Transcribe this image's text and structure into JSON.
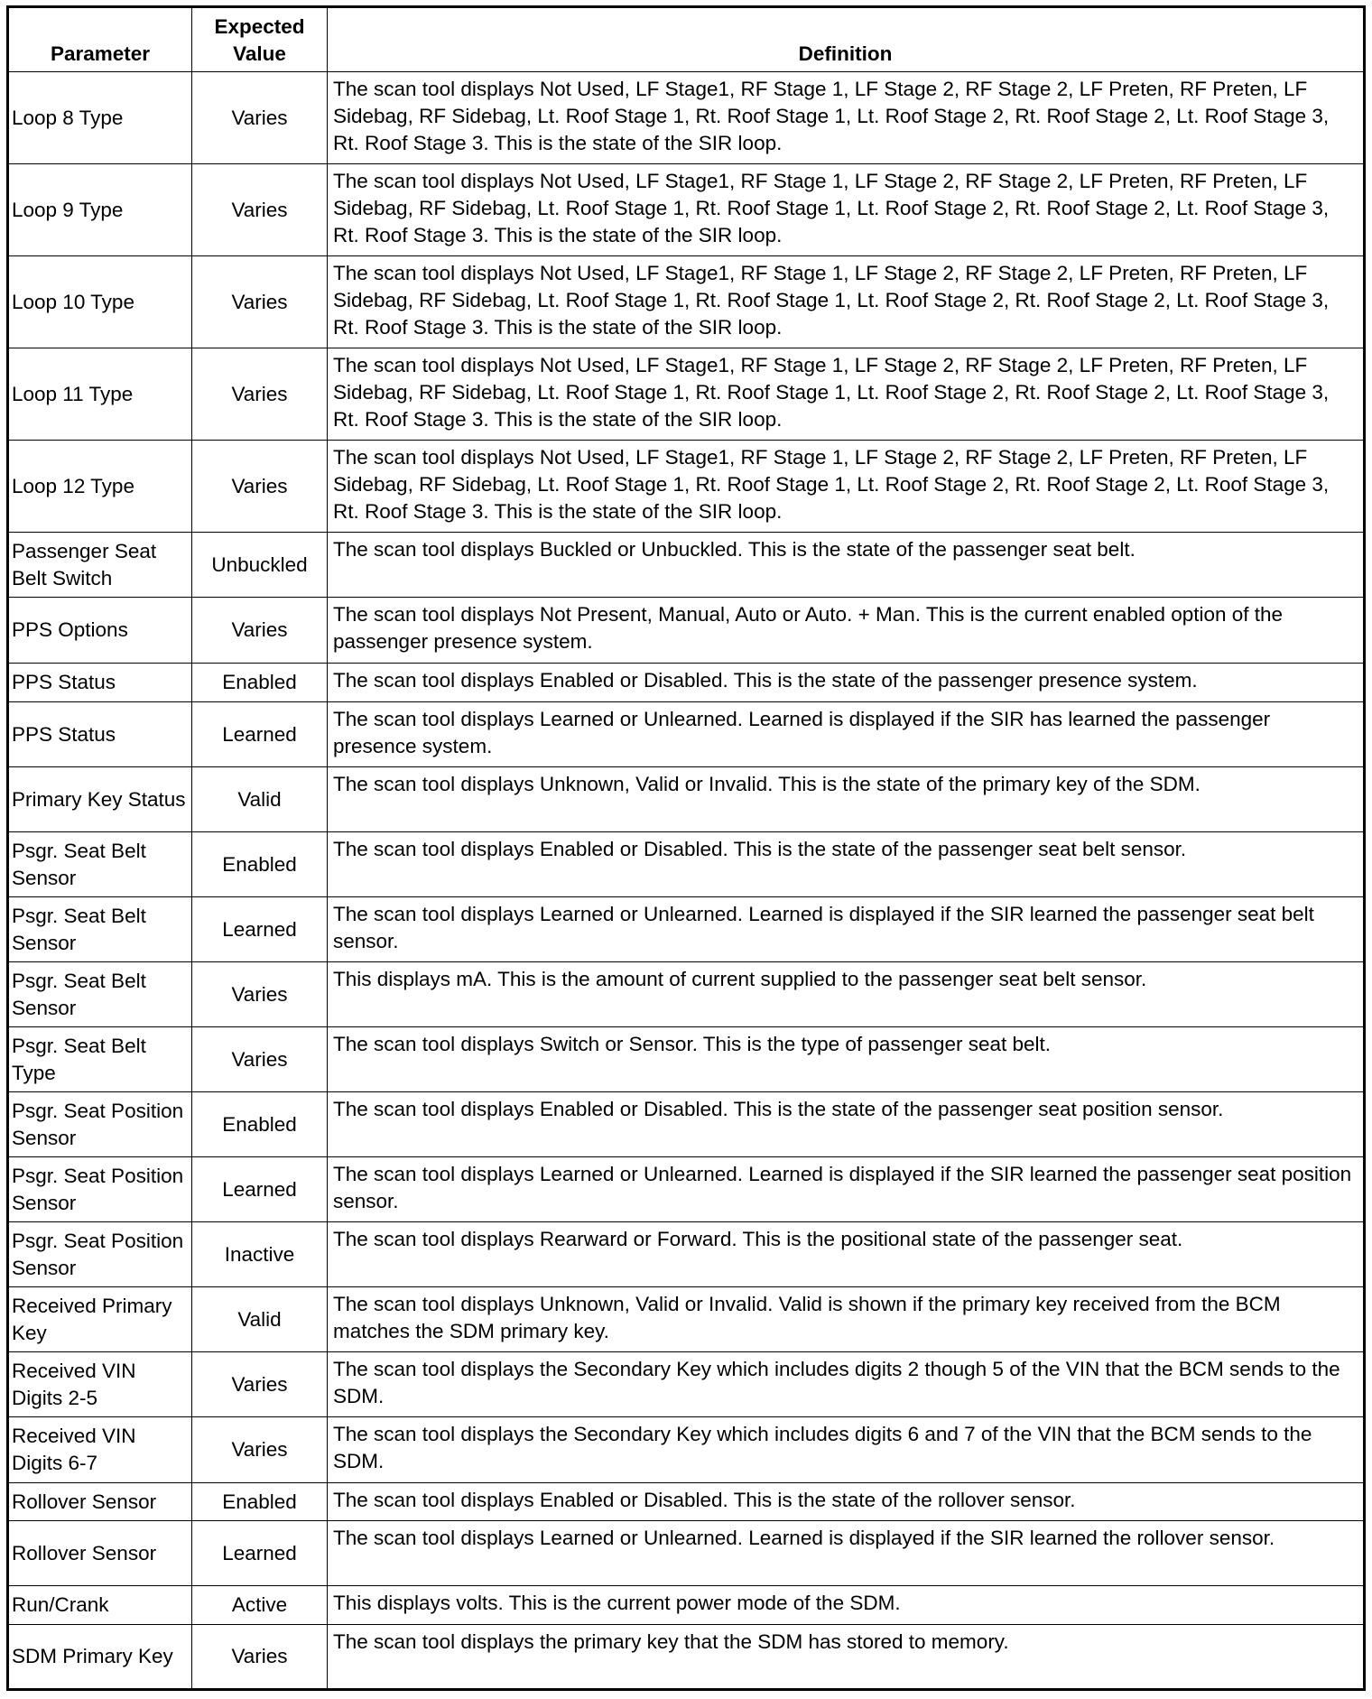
{
  "headers": {
    "parameter": "Parameter",
    "expected_value": "Expected Value",
    "definition": "Definition"
  },
  "rows": [
    {
      "parameter": "Loop 8 Type",
      "value": "Varies",
      "definition": "The scan tool displays Not Used, LF Stage1, RF Stage 1, LF Stage 2, RF Stage 2, LF Preten, RF Preten, LF Sidebag, RF Sidebag, Lt. Roof Stage 1, Rt. Roof Stage 1, Lt. Roof Stage 2, Rt. Roof Stage 2, Lt. Roof Stage 3, Rt. Roof Stage 3. This is the state of the SIR loop."
    },
    {
      "parameter": "Loop 9 Type",
      "value": "Varies",
      "definition": "The scan tool displays Not Used, LF Stage1, RF Stage 1, LF Stage 2, RF Stage 2, LF Preten, RF Preten, LF Sidebag, RF Sidebag, Lt. Roof Stage 1, Rt. Roof Stage 1, Lt. Roof Stage 2, Rt. Roof Stage 2, Lt. Roof Stage 3, Rt. Roof Stage 3. This is the state of the SIR loop."
    },
    {
      "parameter": "Loop 10 Type",
      "value": "Varies",
      "definition": "The scan tool displays Not Used, LF Stage1, RF Stage 1, LF Stage 2, RF Stage 2, LF Preten, RF Preten, LF Sidebag, RF Sidebag, Lt. Roof Stage 1, Rt. Roof Stage 1, Lt. Roof Stage 2, Rt. Roof Stage 2, Lt. Roof Stage 3, Rt. Roof Stage 3. This is the state of the SIR loop."
    },
    {
      "parameter": "Loop 11 Type",
      "value": "Varies",
      "definition": "The scan tool displays Not Used, LF Stage1, RF Stage 1, LF Stage 2, RF Stage 2, LF Preten, RF Preten, LF Sidebag, RF Sidebag, Lt. Roof Stage 1, Rt. Roof Stage 1, Lt. Roof Stage 2, Rt. Roof Stage 2, Lt. Roof Stage 3, Rt. Roof Stage 3. This is the state of the SIR loop."
    },
    {
      "parameter": "Loop 12 Type",
      "value": "Varies",
      "definition": "The scan tool displays Not Used, LF Stage1, RF Stage 1, LF Stage 2, RF Stage 2, LF Preten, RF Preten, LF Sidebag, RF Sidebag, Lt. Roof Stage 1, Rt. Roof Stage 1, Lt. Roof Stage 2, Rt. Roof Stage 2, Lt. Roof Stage 3, Rt. Roof Stage 3. This is the state of the SIR loop."
    },
    {
      "parameter": "Passenger Seat Belt Switch",
      "value": "Unbuckled",
      "definition": "The scan tool displays Buckled or Unbuckled. This is the state of the passenger seat belt."
    },
    {
      "parameter": "PPS Options",
      "value": "Varies",
      "definition": "The scan tool displays Not Present, Manual, Auto or Auto. + Man. This is the current enabled option of the passenger presence system."
    },
    {
      "parameter": "PPS Status",
      "value": "Enabled",
      "definition": "The scan tool displays Enabled or Disabled. This is the state of the passenger presence system."
    },
    {
      "parameter": "PPS Status",
      "value": "Learned",
      "definition": "The scan tool displays Learned or Unlearned. Learned is displayed if the SIR has learned the passenger presence system."
    },
    {
      "parameter": "Primary Key Status",
      "value": "Valid",
      "definition": "The scan tool displays Unknown, Valid or Invalid. This is the state of the primary key of the SDM."
    },
    {
      "parameter": "Psgr. Seat Belt Sensor",
      "value": "Enabled",
      "definition": "The scan tool displays Enabled or Disabled. This is the state of the passenger seat belt sensor."
    },
    {
      "parameter": "Psgr. Seat Belt Sensor",
      "value": "Learned",
      "definition": "The scan tool displays Learned or Unlearned. Learned is displayed if the SIR learned the passenger seat belt sensor."
    },
    {
      "parameter": "Psgr. Seat Belt Sensor",
      "value": "Varies",
      "definition": "This displays mA. This is the amount of current supplied to the passenger seat belt sensor."
    },
    {
      "parameter": "Psgr. Seat Belt Type",
      "value": "Varies",
      "definition": "The scan tool displays Switch or Sensor. This is the type of passenger seat belt."
    },
    {
      "parameter": "Psgr. Seat Position Sensor",
      "value": "Enabled",
      "definition": "The scan tool displays Enabled or Disabled. This is the state of the passenger seat position sensor."
    },
    {
      "parameter": "Psgr. Seat Position Sensor",
      "value": "Learned",
      "definition": "The scan tool displays Learned or Unlearned. Learned is displayed if the SIR learned the passenger seat position sensor."
    },
    {
      "parameter": "Psgr. Seat Position Sensor",
      "value": "Inactive",
      "definition": "The scan tool displays Rearward or Forward. This is the positional state of the passenger seat."
    },
    {
      "parameter": "Received Primary Key",
      "value": "Valid",
      "definition": "The scan tool displays Unknown, Valid or Invalid. Valid is shown if the primary key received from the BCM matches the SDM primary key."
    },
    {
      "parameter": "Received VIN Digits 2-5",
      "value": "Varies",
      "definition": "The scan tool displays the Secondary Key which includes digits 2 though 5 of the VIN that the BCM sends to the SDM."
    },
    {
      "parameter": "Received VIN Digits 6-7",
      "value": "Varies",
      "definition": "The scan tool displays the Secondary Key which includes digits 6 and 7 of the VIN that the BCM sends to the SDM."
    },
    {
      "parameter": "Rollover Sensor",
      "value": "Enabled",
      "definition": "The scan tool displays Enabled or Disabled. This is the state of the rollover sensor."
    },
    {
      "parameter": "Rollover Sensor",
      "value": "Learned",
      "definition": "The scan tool displays Learned or Unlearned. Learned is displayed if the SIR learned the rollover sensor."
    },
    {
      "parameter": "Run/Crank",
      "value": "Active",
      "definition": "This displays volts. This is the current power mode of the SDM."
    },
    {
      "parameter": "SDM Primary Key",
      "value": "Varies",
      "definition": "The scan tool displays the primary key that the SDM has stored to memory."
    }
  ]
}
